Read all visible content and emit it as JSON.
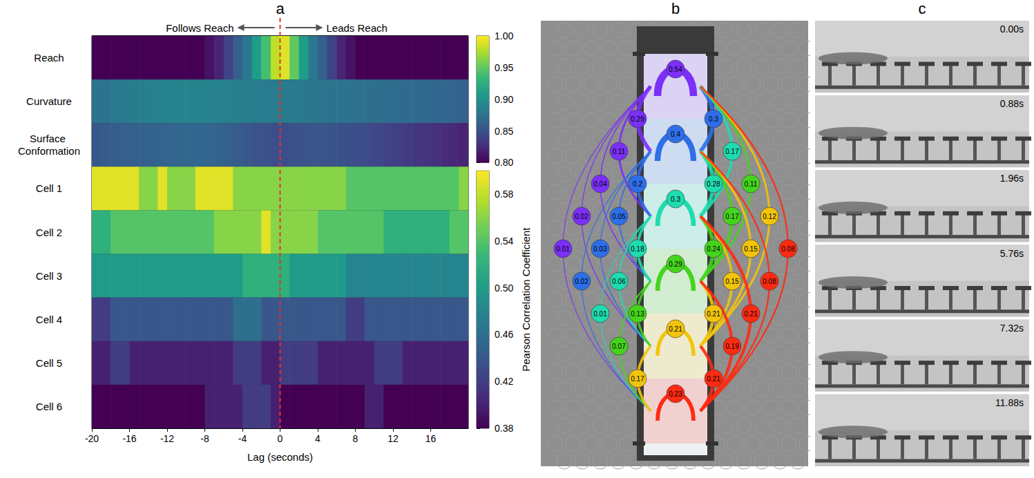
{
  "chart_data": {
    "type": "heatmap",
    "panel_label": "a",
    "annotations": [
      "Follows Reach",
      "Leads Reach"
    ],
    "xlabel": "Lag (seconds)",
    "xlim": [
      -20,
      20
    ],
    "xticks": [
      -20,
      -16,
      -12,
      -8,
      -4,
      0,
      4,
      8,
      12,
      16
    ],
    "reference_line": 0,
    "bins": [
      -20,
      -19,
      -18,
      -17,
      -16,
      -15,
      -14,
      -13,
      -12,
      -11,
      -10,
      -9,
      -8,
      -7,
      -6,
      -5,
      -4,
      -3,
      -2,
      -1,
      0,
      1,
      2,
      3,
      4,
      5,
      6,
      7,
      8,
      9,
      10,
      11,
      12,
      13,
      14,
      15,
      16,
      17,
      18,
      19,
      20
    ],
    "groups": [
      {
        "colorbar": {
          "range": [
            0.8,
            1.0
          ],
          "ticks": [
            {
              "value": 0.8,
              "label": "0.80"
            },
            0.85,
            {
              "value": 0.9,
              "label": "0.90"
            },
            0.95,
            {
              "value": 1.0,
              "label": "1.00"
            }
          ]
        },
        "rows": [
          {
            "name": "Reach",
            "values": [
              0.8,
              0.8,
              0.8,
              0.8,
              0.8,
              0.8,
              0.8,
              0.8,
              0.8,
              0.8,
              0.8,
              0.8,
              0.81,
              0.82,
              0.84,
              0.86,
              0.88,
              0.91,
              0.94,
              0.98,
              0.99,
              0.95,
              0.91,
              0.88,
              0.86,
              0.84,
              0.82,
              0.81,
              0.8,
              0.8,
              0.8,
              0.8,
              0.8,
              0.8,
              0.8,
              0.8,
              0.8,
              0.8,
              0.8,
              0.8
            ]
          },
          {
            "name": "Curvature",
            "values": [
              0.875,
              0.877,
              0.88,
              0.882,
              0.884,
              0.886,
              0.888,
              0.889,
              0.89,
              0.89,
              0.89,
              0.89,
              0.889,
              0.888,
              0.887,
              0.886,
              0.885,
              0.884,
              0.884,
              0.883,
              0.882,
              0.881,
              0.88,
              0.879,
              0.878,
              0.877,
              0.876,
              0.875,
              0.874,
              0.873,
              0.872,
              0.871,
              0.87,
              0.869,
              0.868,
              0.867,
              0.866,
              0.865,
              0.864,
              0.862
            ]
          },
          {
            "name": "Surface Conformation",
            "values": [
              0.855,
              0.857,
              0.859,
              0.86,
              0.861,
              0.862,
              0.863,
              0.864,
              0.865,
              0.866,
              0.866,
              0.866,
              0.865,
              0.863,
              0.861,
              0.858,
              0.855,
              0.852,
              0.85,
              0.848,
              0.848,
              0.85,
              0.852,
              0.853,
              0.853,
              0.852,
              0.851,
              0.849,
              0.847,
              0.845,
              0.843,
              0.84,
              0.838,
              0.835,
              0.833,
              0.83,
              0.828,
              0.825,
              0.822,
              0.82
            ]
          }
        ]
      },
      {
        "colorbar": {
          "label": "Pearson Correlation Coefficient",
          "range": [
            0.38,
            0.6
          ],
          "ticks": [
            0.38,
            0.42,
            0.46,
            {
              "value": 0.5,
              "label": "0.50"
            },
            0.54,
            0.58
          ]
        },
        "rows": [
          {
            "name": "Cell 1",
            "values": [
              0.59,
              0.59,
              0.59,
              0.59,
              0.59,
              0.56,
              0.56,
              0.59,
              0.56,
              0.56,
              0.56,
              0.59,
              0.59,
              0.59,
              0.59,
              0.56,
              0.56,
              0.56,
              0.56,
              0.56,
              0.56,
              0.56,
              0.56,
              0.56,
              0.56,
              0.56,
              0.56,
              0.54,
              0.54,
              0.54,
              0.54,
              0.54,
              0.54,
              0.54,
              0.54,
              0.54,
              0.54,
              0.54,
              0.54,
              0.56
            ]
          },
          {
            "name": "Cell 2",
            "values": [
              0.52,
              0.52,
              0.54,
              0.54,
              0.54,
              0.54,
              0.54,
              0.54,
              0.54,
              0.54,
              0.54,
              0.54,
              0.54,
              0.56,
              0.56,
              0.56,
              0.56,
              0.56,
              0.59,
              0.56,
              0.56,
              0.56,
              0.56,
              0.56,
              0.54,
              0.54,
              0.54,
              0.54,
              0.54,
              0.54,
              0.54,
              0.52,
              0.52,
              0.52,
              0.52,
              0.52,
              0.52,
              0.52,
              0.54,
              0.54
            ]
          },
          {
            "name": "Cell 3",
            "values": [
              0.5,
              0.5,
              0.5,
              0.5,
              0.5,
              0.5,
              0.5,
              0.5,
              0.5,
              0.5,
              0.5,
              0.5,
              0.5,
              0.5,
              0.5,
              0.5,
              0.52,
              0.52,
              0.52,
              0.52,
              0.52,
              0.5,
              0.5,
              0.5,
              0.5,
              0.5,
              0.5,
              0.48,
              0.48,
              0.48,
              0.48,
              0.48,
              0.48,
              0.48,
              0.48,
              0.48,
              0.48,
              0.48,
              0.48,
              0.48
            ]
          },
          {
            "name": "Cell 4",
            "values": [
              0.42,
              0.42,
              0.44,
              0.44,
              0.44,
              0.44,
              0.44,
              0.44,
              0.44,
              0.44,
              0.44,
              0.44,
              0.44,
              0.44,
              0.44,
              0.46,
              0.46,
              0.46,
              0.44,
              0.44,
              0.44,
              0.44,
              0.44,
              0.44,
              0.44,
              0.44,
              0.44,
              0.42,
              0.42,
              0.44,
              0.44,
              0.44,
              0.44,
              0.44,
              0.44,
              0.44,
              0.44,
              0.44,
              0.44,
              0.44
            ]
          },
          {
            "name": "Cell 5",
            "values": [
              0.4,
              0.4,
              0.42,
              0.42,
              0.4,
              0.4,
              0.4,
              0.4,
              0.4,
              0.4,
              0.4,
              0.4,
              0.4,
              0.4,
              0.4,
              0.42,
              0.42,
              0.42,
              0.4,
              0.4,
              0.42,
              0.42,
              0.42,
              0.42,
              0.4,
              0.4,
              0.4,
              0.4,
              0.4,
              0.4,
              0.42,
              0.42,
              0.42,
              0.4,
              0.4,
              0.4,
              0.4,
              0.4,
              0.4,
              0.4
            ]
          },
          {
            "name": "Cell 6",
            "values": [
              0.38,
              0.38,
              0.38,
              0.38,
              0.38,
              0.38,
              0.38,
              0.38,
              0.38,
              0.38,
              0.38,
              0.38,
              0.4,
              0.4,
              0.4,
              0.4,
              0.42,
              0.42,
              0.42,
              0.4,
              0.38,
              0.38,
              0.38,
              0.38,
              0.38,
              0.38,
              0.38,
              0.38,
              0.38,
              0.4,
              0.4,
              0.38,
              0.38,
              0.38,
              0.38,
              0.38,
              0.38,
              0.38,
              0.38,
              0.38
            ]
          }
        ]
      }
    ]
  },
  "diagram": {
    "panel_label": "b",
    "states": [
      {
        "color": "#7b2ff7"
      },
      {
        "color": "#2e6fe8"
      },
      {
        "color": "#1fdcb0"
      },
      {
        "color": "#45d41e"
      },
      {
        "color": "#f2c40c"
      },
      {
        "color": "#ff2a12"
      }
    ],
    "self_transitions": [
      0.54,
      0.4,
      0.3,
      0.29,
      0.21,
      0.23
    ],
    "transitions": [
      {
        "from": 0,
        "to": 1,
        "value": 0.29
      },
      {
        "from": 0,
        "to": 2,
        "value": 0.11
      },
      {
        "from": 0,
        "to": 3,
        "value": 0.04
      },
      {
        "from": 0,
        "to": 4,
        "value": 0.02
      },
      {
        "from": 0,
        "to": 5,
        "value": 0.01
      },
      {
        "from": 1,
        "to": 0,
        "value": 0.3
      },
      {
        "from": 1,
        "to": 2,
        "value": 0.2
      },
      {
        "from": 1,
        "to": 3,
        "value": 0.05
      },
      {
        "from": 1,
        "to": 4,
        "value": 0.03
      },
      {
        "from": 1,
        "to": 5,
        "value": 0.02
      },
      {
        "from": 2,
        "to": 0,
        "value": 0.17
      },
      {
        "from": 2,
        "to": 1,
        "value": 0.28
      },
      {
        "from": 2,
        "to": 3,
        "value": 0.18
      },
      {
        "from": 2,
        "to": 4,
        "value": 0.06
      },
      {
        "from": 2,
        "to": 5,
        "value": 0.01
      },
      {
        "from": 3,
        "to": 0,
        "value": 0.11
      },
      {
        "from": 3,
        "to": 1,
        "value": 0.17
      },
      {
        "from": 3,
        "to": 2,
        "value": 0.24
      },
      {
        "from": 3,
        "to": 4,
        "value": 0.13
      },
      {
        "from": 3,
        "to": 5,
        "value": 0.07
      },
      {
        "from": 4,
        "to": 0,
        "value": 0.12
      },
      {
        "from": 4,
        "to": 1,
        "value": 0.15
      },
      {
        "from": 4,
        "to": 2,
        "value": 0.15
      },
      {
        "from": 4,
        "to": 3,
        "value": 0.21
      },
      {
        "from": 4,
        "to": 5,
        "value": 0.17
      },
      {
        "from": 5,
        "to": 0,
        "value": 0.08
      },
      {
        "from": 5,
        "to": 1,
        "value": 0.08
      },
      {
        "from": 5,
        "to": 2,
        "value": 0.21
      },
      {
        "from": 5,
        "to": 3,
        "value": 0.19
      },
      {
        "from": 5,
        "to": 4,
        "value": 0.21
      }
    ]
  },
  "frames": {
    "panel_label": "c",
    "times": [
      "0.00s",
      "0.88s",
      "1.96s",
      "5.76s",
      "7.32s",
      "11.88s"
    ]
  }
}
